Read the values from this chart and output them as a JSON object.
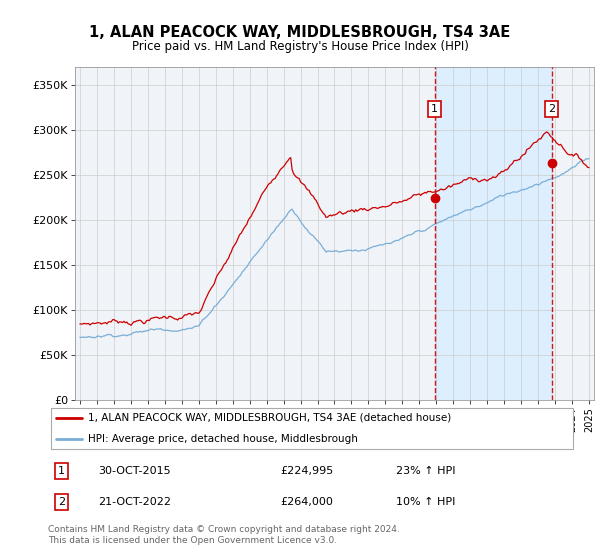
{
  "title": "1, ALAN PEACOCK WAY, MIDDLESBROUGH, TS4 3AE",
  "subtitle": "Price paid vs. HM Land Registry's House Price Index (HPI)",
  "legend_line1": "1, ALAN PEACOCK WAY, MIDDLESBROUGH, TS4 3AE (detached house)",
  "legend_line2": "HPI: Average price, detached house, Middlesbrough",
  "annotation1": {
    "label": "1",
    "date": "30-OCT-2015",
    "price": "£224,995",
    "hpi": "23% ↑ HPI"
  },
  "annotation2": {
    "label": "2",
    "date": "21-OCT-2022",
    "price": "£264,000",
    "hpi": "10% ↑ HPI"
  },
  "footer": "Contains HM Land Registry data © Crown copyright and database right 2024.\nThis data is licensed under the Open Government Licence v3.0.",
  "price_color": "#cc0000",
  "hpi_color": "#7aaed6",
  "shade_color": "#ddeeff",
  "vline_color": "#cc0000",
  "sale1_x": 2015.9,
  "sale1_y": 224995,
  "sale2_x": 2022.8,
  "sale2_y": 264000,
  "ylim": [
    0,
    370000
  ],
  "yticks": [
    0,
    50000,
    100000,
    150000,
    200000,
    250000,
    300000,
    350000
  ],
  "ytick_labels": [
    "£0",
    "£50K",
    "£100K",
    "£150K",
    "£200K",
    "£250K",
    "£300K",
    "£350K"
  ],
  "xmin": 1994.7,
  "xmax": 2025.3,
  "background": "#f0f4f8"
}
